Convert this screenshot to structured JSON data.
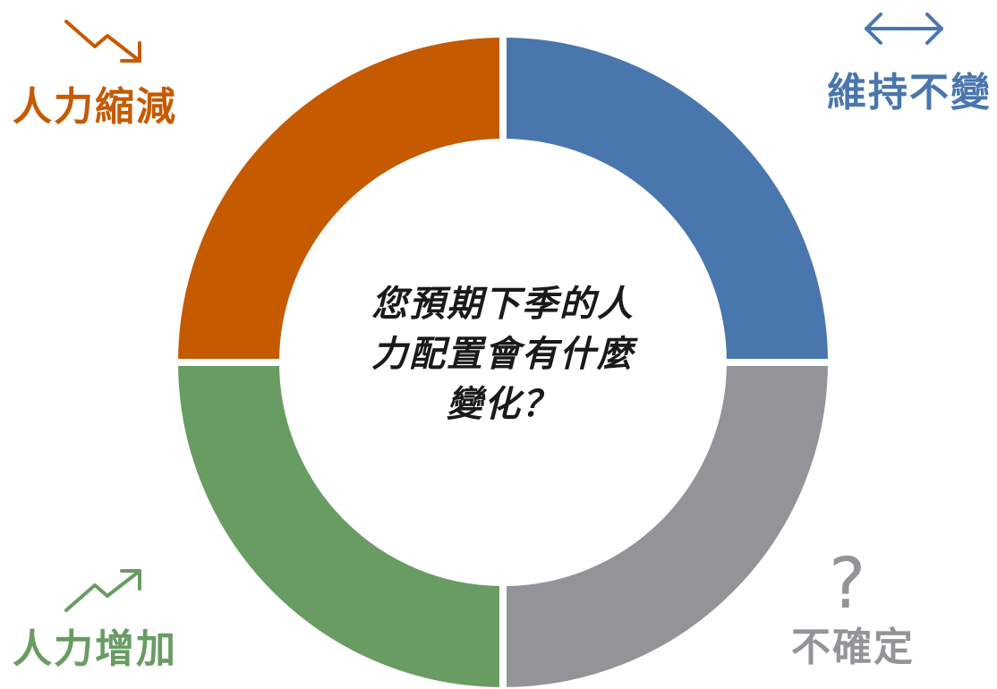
{
  "question": {
    "lines": [
      "您預期下季的人",
      "力配置會有什麼",
      "變化？"
    ]
  },
  "segments": [
    {
      "id": "keep",
      "label": "維持不變",
      "icon": "left-right-arrow-icon",
      "color": "#4a76ae",
      "fraction": 0.25
    },
    {
      "id": "unsure",
      "label": "不確定",
      "icon": "question-mark-icon",
      "icon_glyph": "?",
      "color": "#939498",
      "fraction": 0.25
    },
    {
      "id": "increase",
      "label": "人力增加",
      "icon": "trend-up-icon",
      "color": "#699c63",
      "fraction": 0.25
    },
    {
      "id": "decrease",
      "label": "人力縮減",
      "icon": "trend-down-icon",
      "color": "#c55a00",
      "fraction": 0.25
    }
  ],
  "colors": {
    "background": "#ffffff",
    "separator": "#ffffff",
    "center_text": "#1a1a1a"
  }
}
